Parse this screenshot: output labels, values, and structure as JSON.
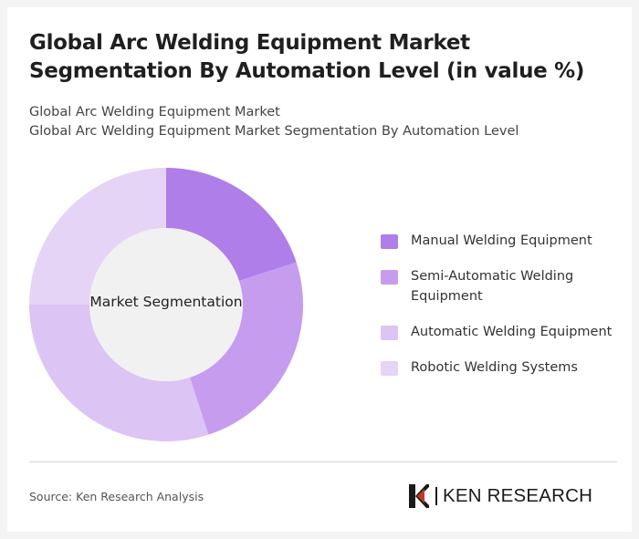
{
  "header": {
    "title": "Global Arc Welding Equipment Market Segmentation By Automation Level (in value %)",
    "subtitle_line1": "Global Arc Welding Equipment Market",
    "subtitle_line2": "Global Arc Welding Equipment Market Segmentation By Automation Level"
  },
  "chart_data": {
    "type": "pie",
    "variant": "donut",
    "center_label": "Market Segmentation",
    "legend_position": "right",
    "categories": [
      "Manual Welding Equipment",
      "Semi-Automatic Welding Equipment",
      "Automatic Welding Equipment",
      "Robotic Welding Systems"
    ],
    "values": [
      20,
      25,
      30,
      25
    ],
    "colors": [
      "#b07ee8",
      "#c69cef",
      "#dcc4f4",
      "#e5d4f6"
    ]
  },
  "footer": {
    "source": "Source: Ken Research Analysis",
    "logo_text": "KEN RESEARCH"
  }
}
